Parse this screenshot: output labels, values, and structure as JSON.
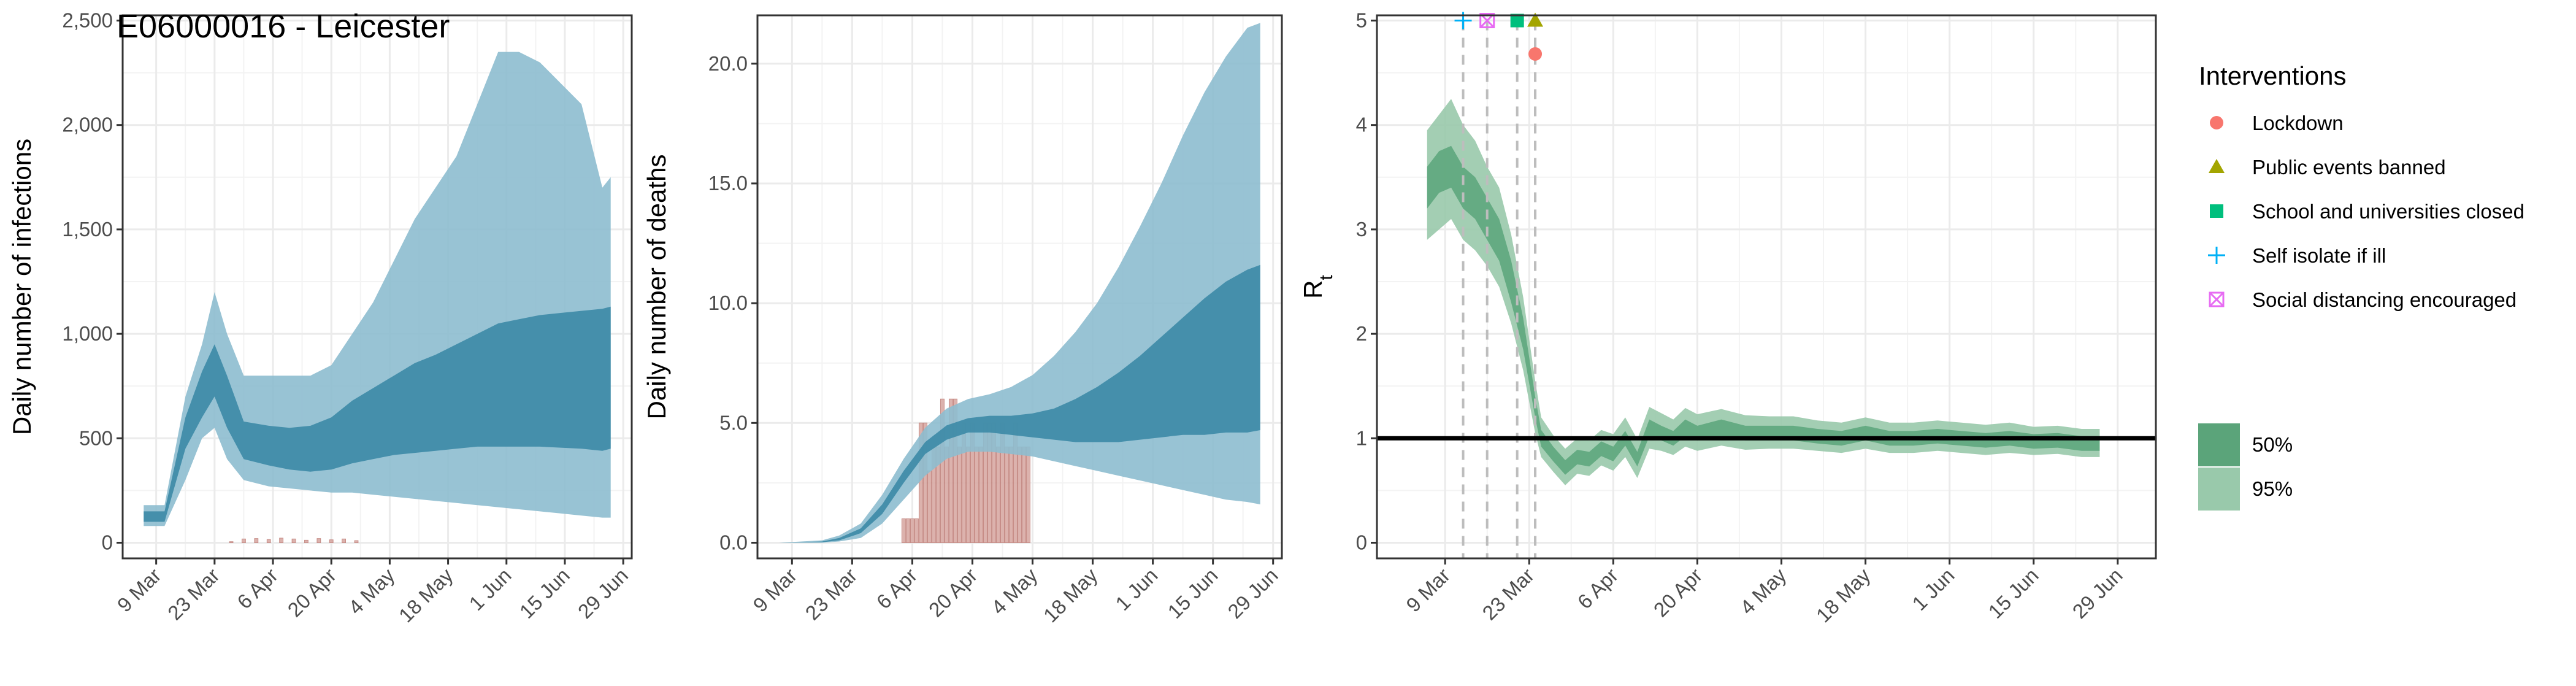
{
  "title": "E06000016 - Leicester",
  "colors": {
    "band95": "#8dbdcf",
    "band50": "#3c8aa6",
    "obs_bar": "#d9aaa5",
    "obs_bar_edge": "#c0807a",
    "rt95": "#99c9ab",
    "rt50": "#5ba47a",
    "rt_line": "#3b8f5e",
    "panel_bg": "#ffffff",
    "grid": "#ebebeb",
    "lockdown": "#f8766d",
    "public_events": "#a3a500",
    "schools": "#00bf7d",
    "self_isolate": "#00b0f6",
    "social_distancing": "#e76bf3"
  },
  "date_ticks": [
    "9 Mar",
    "23 Mar",
    "6 Apr",
    "20 Apr",
    "4 May",
    "18 May",
    "1 Jun",
    "15 Jun",
    "29 Jun"
  ],
  "chart_data": [
    {
      "type": "area",
      "name": "infections",
      "xlabel": "",
      "ylabel": "Daily number of infections",
      "ylim": [
        0,
        2500
      ],
      "yticks": [
        0,
        500,
        1000,
        1500,
        2000,
        2500
      ],
      "ytick_labels": [
        "0",
        "500",
        "1,000",
        "1,500",
        "2,000",
        "2,500"
      ],
      "x_start": "2020-03-06",
      "x_end": "2020-06-26",
      "band95": {
        "x": [
          "2020-03-06",
          "2020-03-11",
          "2020-03-16",
          "2020-03-20",
          "2020-03-23",
          "2020-03-26",
          "2020-03-30",
          "2020-04-05",
          "2020-04-10",
          "2020-04-15",
          "2020-04-20",
          "2020-04-25",
          "2020-04-30",
          "2020-05-05",
          "2020-05-10",
          "2020-05-15",
          "2020-05-20",
          "2020-05-25",
          "2020-05-30",
          "2020-06-04",
          "2020-06-09",
          "2020-06-14",
          "2020-06-19",
          "2020-06-24",
          "2020-06-26"
        ],
        "lower": [
          80,
          80,
          300,
          500,
          550,
          400,
          300,
          270,
          260,
          250,
          240,
          240,
          230,
          220,
          210,
          200,
          190,
          180,
          170,
          160,
          150,
          140,
          130,
          120,
          120
        ],
        "upper": [
          180,
          180,
          700,
          950,
          1200,
          1000,
          800,
          800,
          800,
          800,
          850,
          1000,
          1150,
          1350,
          1550,
          1700,
          1850,
          2100,
          2350,
          2350,
          2300,
          2200,
          2100,
          1700,
          1750
        ]
      },
      "band50": {
        "x": [
          "2020-03-06",
          "2020-03-11",
          "2020-03-16",
          "2020-03-20",
          "2020-03-23",
          "2020-03-26",
          "2020-03-30",
          "2020-04-05",
          "2020-04-10",
          "2020-04-15",
          "2020-04-20",
          "2020-04-25",
          "2020-04-30",
          "2020-05-05",
          "2020-05-10",
          "2020-05-15",
          "2020-05-20",
          "2020-05-25",
          "2020-05-30",
          "2020-06-04",
          "2020-06-09",
          "2020-06-14",
          "2020-06-19",
          "2020-06-24",
          "2020-06-26"
        ],
        "lower": [
          100,
          100,
          450,
          600,
          700,
          550,
          400,
          370,
          350,
          340,
          350,
          380,
          400,
          420,
          430,
          440,
          450,
          460,
          460,
          460,
          460,
          455,
          450,
          440,
          450
        ],
        "upper": [
          150,
          150,
          600,
          820,
          950,
          800,
          580,
          560,
          550,
          560,
          600,
          680,
          740,
          800,
          860,
          900,
          950,
          1000,
          1050,
          1070,
          1090,
          1100,
          1110,
          1120,
          1130
        ]
      },
      "observed": {
        "x": [
          "2020-03-27",
          "2020-03-30",
          "2020-04-02",
          "2020-04-05",
          "2020-04-08",
          "2020-04-11",
          "2020-04-14",
          "2020-04-17",
          "2020-04-20",
          "2020-04-23",
          "2020-04-26"
        ],
        "values": [
          5,
          18,
          20,
          15,
          22,
          18,
          12,
          20,
          14,
          18,
          10
        ]
      }
    },
    {
      "type": "area",
      "name": "deaths",
      "xlabel": "",
      "ylabel": "Daily number of deaths",
      "ylim": [
        0,
        21.8
      ],
      "yticks": [
        0,
        5,
        10,
        15,
        20
      ],
      "ytick_labels": [
        "0.0",
        "5.0",
        "10.0",
        "15.0",
        "20.0"
      ],
      "x_start": "2020-03-06",
      "x_end": "2020-06-26",
      "band95": {
        "x": [
          "2020-03-06",
          "2020-03-16",
          "2020-03-20",
          "2020-03-25",
          "2020-03-30",
          "2020-04-04",
          "2020-04-09",
          "2020-04-14",
          "2020-04-19",
          "2020-04-24",
          "2020-04-29",
          "2020-05-04",
          "2020-05-09",
          "2020-05-14",
          "2020-05-19",
          "2020-05-24",
          "2020-05-29",
          "2020-06-03",
          "2020-06-08",
          "2020-06-13",
          "2020-06-18",
          "2020-06-23",
          "2020-06-26"
        ],
        "lower": [
          0,
          0,
          0.05,
          0.2,
          0.8,
          1.8,
          2.8,
          3.5,
          3.8,
          3.8,
          3.7,
          3.6,
          3.4,
          3.2,
          3.0,
          2.8,
          2.6,
          2.4,
          2.2,
          2.0,
          1.8,
          1.7,
          1.6
        ],
        "upper": [
          0,
          0.1,
          0.3,
          0.8,
          2.0,
          3.5,
          4.8,
          5.6,
          6.0,
          6.2,
          6.5,
          7.0,
          7.8,
          8.8,
          10.0,
          11.5,
          13.2,
          15.0,
          17.0,
          18.8,
          20.3,
          21.5,
          21.7
        ]
      },
      "band50": {
        "x": [
          "2020-03-06",
          "2020-03-16",
          "2020-03-20",
          "2020-03-25",
          "2020-03-30",
          "2020-04-04",
          "2020-04-09",
          "2020-04-14",
          "2020-04-19",
          "2020-04-24",
          "2020-04-29",
          "2020-05-04",
          "2020-05-09",
          "2020-05-14",
          "2020-05-19",
          "2020-05-24",
          "2020-05-29",
          "2020-06-03",
          "2020-06-08",
          "2020-06-13",
          "2020-06-18",
          "2020-06-23",
          "2020-06-26"
        ],
        "lower": [
          0,
          0.02,
          0.1,
          0.4,
          1.2,
          2.5,
          3.7,
          4.3,
          4.6,
          4.6,
          4.5,
          4.4,
          4.3,
          4.2,
          4.2,
          4.2,
          4.3,
          4.4,
          4.5,
          4.5,
          4.6,
          4.6,
          4.7
        ],
        "upper": [
          0,
          0.05,
          0.2,
          0.6,
          1.6,
          3.0,
          4.2,
          4.9,
          5.2,
          5.3,
          5.3,
          5.4,
          5.6,
          6.0,
          6.5,
          7.1,
          7.8,
          8.6,
          9.4,
          10.2,
          10.9,
          11.4,
          11.6
        ]
      },
      "observed": {
        "x": [
          "2020-04-04",
          "2020-04-05",
          "2020-04-06",
          "2020-04-07",
          "2020-04-08",
          "2020-04-09",
          "2020-04-10",
          "2020-04-11",
          "2020-04-12",
          "2020-04-13",
          "2020-04-14",
          "2020-04-15",
          "2020-04-16",
          "2020-04-17",
          "2020-04-18",
          "2020-04-19",
          "2020-04-20",
          "2020-04-21",
          "2020-04-22",
          "2020-04-23",
          "2020-04-24",
          "2020-04-25",
          "2020-04-26",
          "2020-04-27",
          "2020-04-28",
          "2020-04-29",
          "2020-04-30",
          "2020-05-01",
          "2020-05-02",
          "2020-05-03"
        ],
        "values": [
          1,
          1,
          1,
          1,
          5,
          5,
          3,
          4,
          4,
          6,
          4,
          6,
          6,
          4,
          5,
          4,
          5,
          4,
          4,
          5,
          5,
          5,
          4,
          5,
          4,
          4,
          5,
          4,
          4,
          4
        ]
      }
    },
    {
      "type": "line",
      "name": "rt",
      "xlabel": "",
      "ylabel": "R",
      "ylabel_sub": "t",
      "ylim": [
        0,
        5
      ],
      "yticks": [
        0,
        1,
        2,
        3,
        4,
        5
      ],
      "ytick_labels": [
        "0",
        "1",
        "2",
        "3",
        "4",
        "5"
      ],
      "x_start": "2020-03-03",
      "x_end": "2020-06-30",
      "reference_line": 1,
      "rt": {
        "x": [
          "2020-03-06",
          "2020-03-08",
          "2020-03-10",
          "2020-03-12",
          "2020-03-14",
          "2020-03-16",
          "2020-03-18",
          "2020-03-20",
          "2020-03-22",
          "2020-03-24",
          "2020-03-25",
          "2020-03-27",
          "2020-03-29",
          "2020-03-31",
          "2020-04-02",
          "2020-04-04",
          "2020-04-06",
          "2020-04-08",
          "2020-04-10",
          "2020-04-12",
          "2020-04-14",
          "2020-04-16",
          "2020-04-18",
          "2020-04-20",
          "2020-04-24",
          "2020-04-28",
          "2020-05-02",
          "2020-05-06",
          "2020-05-10",
          "2020-05-14",
          "2020-05-18",
          "2020-05-22",
          "2020-05-26",
          "2020-05-30",
          "2020-06-03",
          "2020-06-07",
          "2020-06-11",
          "2020-06-15",
          "2020-06-19",
          "2020-06-23",
          "2020-06-26"
        ],
        "median": [
          3.4,
          3.55,
          3.6,
          3.4,
          3.3,
          3.1,
          2.9,
          2.5,
          2.0,
          1.3,
          1.0,
          0.85,
          0.72,
          0.82,
          0.8,
          0.9,
          0.85,
          1.0,
          0.8,
          1.1,
          1.05,
          1.0,
          1.1,
          1.05,
          1.1,
          1.05,
          1.05,
          1.05,
          1.02,
          1.0,
          1.05,
          1.0,
          1.0,
          1.02,
          1.0,
          0.98,
          1.0,
          0.97,
          0.98,
          0.95,
          0.95
        ],
        "lower50": [
          3.2,
          3.35,
          3.4,
          3.2,
          3.1,
          2.9,
          2.7,
          2.3,
          1.85,
          1.2,
          0.92,
          0.78,
          0.65,
          0.75,
          0.73,
          0.83,
          0.78,
          0.93,
          0.73,
          1.02,
          0.98,
          0.93,
          1.02,
          0.98,
          1.02,
          0.98,
          0.98,
          0.98,
          0.95,
          0.93,
          0.98,
          0.93,
          0.93,
          0.95,
          0.93,
          0.91,
          0.93,
          0.9,
          0.91,
          0.88,
          0.88
        ],
        "upper50": [
          3.6,
          3.75,
          3.8,
          3.6,
          3.5,
          3.3,
          3.1,
          2.7,
          2.15,
          1.4,
          1.08,
          0.92,
          0.79,
          0.89,
          0.87,
          0.97,
          0.92,
          1.07,
          0.87,
          1.18,
          1.12,
          1.07,
          1.18,
          1.12,
          1.18,
          1.12,
          1.12,
          1.12,
          1.09,
          1.07,
          1.12,
          1.07,
          1.07,
          1.09,
          1.07,
          1.05,
          1.07,
          1.04,
          1.05,
          1.02,
          1.02
        ],
        "lower95": [
          2.9,
          3.0,
          3.1,
          2.9,
          2.8,
          2.65,
          2.45,
          2.1,
          1.65,
          1.05,
          0.82,
          0.68,
          0.55,
          0.66,
          0.64,
          0.74,
          0.69,
          0.82,
          0.62,
          0.9,
          0.88,
          0.84,
          0.92,
          0.88,
          0.93,
          0.89,
          0.9,
          0.9,
          0.88,
          0.86,
          0.9,
          0.86,
          0.86,
          0.88,
          0.86,
          0.84,
          0.86,
          0.84,
          0.85,
          0.82,
          0.82
        ],
        "upper95": [
          3.95,
          4.1,
          4.25,
          4.0,
          3.85,
          3.6,
          3.4,
          2.95,
          2.35,
          1.55,
          1.2,
          1.03,
          0.9,
          1.0,
          0.98,
          1.08,
          1.04,
          1.2,
          0.99,
          1.3,
          1.24,
          1.18,
          1.29,
          1.23,
          1.28,
          1.22,
          1.21,
          1.21,
          1.17,
          1.15,
          1.2,
          1.15,
          1.15,
          1.17,
          1.15,
          1.13,
          1.15,
          1.11,
          1.12,
          1.09,
          1.09
        ]
      },
      "interventions": [
        {
          "name": "Self isolate if ill",
          "date": "2020-03-12",
          "y": 5.0,
          "shape": "plus",
          "color": "#00b0f6"
        },
        {
          "name": "Social distancing encouraged",
          "date": "2020-03-16",
          "y": 5.0,
          "shape": "boxx",
          "color": "#e76bf3"
        },
        {
          "name": "School and universities closed",
          "date": "2020-03-21",
          "y": 5.0,
          "shape": "square",
          "color": "#00bf7d"
        },
        {
          "name": "Public events banned",
          "date": "2020-03-24",
          "y": 5.0,
          "shape": "triangle",
          "color": "#a3a500"
        },
        {
          "name": "Lockdown",
          "date": "2020-03-24",
          "y": 4.68,
          "shape": "circle",
          "color": "#f8766d"
        }
      ]
    }
  ],
  "legend": {
    "title": "Interventions",
    "items": [
      {
        "label": "Lockdown",
        "shape": "circle",
        "color": "#f8766d"
      },
      {
        "label": "Public events banned",
        "shape": "triangle",
        "color": "#a3a500"
      },
      {
        "label": "School and universities closed",
        "shape": "square",
        "color": "#00bf7d"
      },
      {
        "label": "Self isolate if ill",
        "shape": "plus",
        "color": "#00b0f6"
      },
      {
        "label": "Social distancing encouraged",
        "shape": "boxx",
        "color": "#e76bf3"
      }
    ],
    "ci_items": [
      {
        "label": "50%",
        "color": "#5ba47a"
      },
      {
        "label": "95%",
        "color": "#99c9ab"
      }
    ]
  }
}
